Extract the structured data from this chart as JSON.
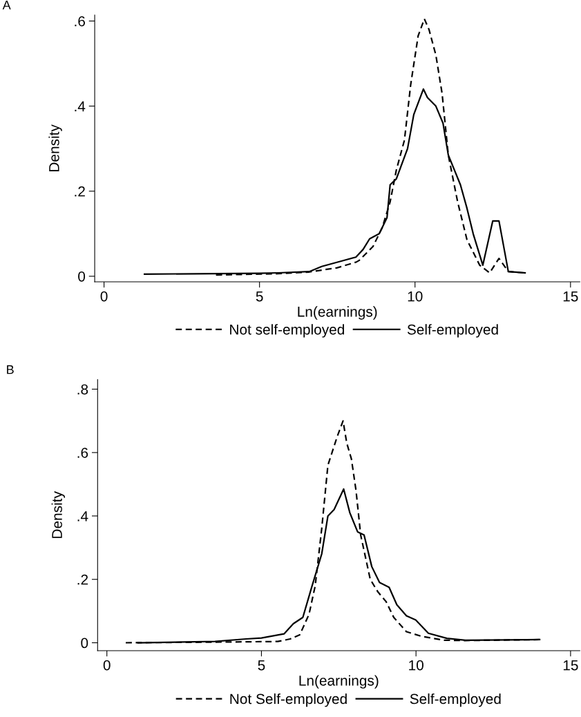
{
  "chart_data": [
    {
      "type": "line",
      "title": "A",
      "xlabel": "Ln(earnings)",
      "ylabel": "Density",
      "xlim": [
        -0.3,
        15.3
      ],
      "ylim": [
        -0.013,
        0.614
      ],
      "xticks": [
        0,
        5,
        10,
        15
      ],
      "yticks": [
        {
          "value": 0,
          "label": "0"
        },
        {
          "value": 0.2,
          "label": ".2"
        },
        {
          "value": 0.4,
          "label": ".4"
        },
        {
          "value": 0.6,
          "label": ".6"
        }
      ],
      "grid": false,
      "legend": "bottom",
      "series": [
        {
          "name": "Not self-employed",
          "color": "#000000",
          "line_style": "dashed",
          "x": [
            3.6,
            5.6,
            6.6,
            7.5,
            8.1,
            8.2,
            8.65,
            8.95,
            9.2,
            9.4,
            9.66,
            9.86,
            10.1,
            10.3,
            10.45,
            10.67,
            10.87,
            11.07,
            11.37,
            11.67,
            12.08,
            12.4,
            12.7,
            13.0,
            13.5
          ],
          "values": [
            0.003,
            0.006,
            0.01,
            0.02,
            0.033,
            0.037,
            0.07,
            0.115,
            0.175,
            0.25,
            0.32,
            0.45,
            0.565,
            0.605,
            0.58,
            0.52,
            0.43,
            0.285,
            0.175,
            0.086,
            0.026,
            0.008,
            0.042,
            0.011,
            0.008
          ]
        },
        {
          "name": "Self-employed",
          "color": "#000000",
          "line_style": "solid",
          "x": [
            1.3,
            5.0,
            5.6,
            6.6,
            7.0,
            7.65,
            8.1,
            8.33,
            8.54,
            8.85,
            9.1,
            9.2,
            9.4,
            9.76,
            9.96,
            10.27,
            10.4,
            10.67,
            10.9,
            11.07,
            11.46,
            11.67,
            11.87,
            12.18,
            12.5,
            12.7,
            13.0,
            13.54
          ],
          "values": [
            0.005,
            0.007,
            0.008,
            0.011,
            0.023,
            0.036,
            0.045,
            0.063,
            0.088,
            0.1,
            0.138,
            0.215,
            0.229,
            0.3,
            0.38,
            0.44,
            0.42,
            0.4,
            0.36,
            0.285,
            0.215,
            0.16,
            0.1,
            0.026,
            0.13,
            0.13,
            0.011,
            0.008
          ]
        }
      ]
    },
    {
      "type": "line",
      "title": "B",
      "xlabel": "Ln(earnings)",
      "ylabel": "Density",
      "xlim": [
        -0.3,
        15.3
      ],
      "ylim": [
        -0.025,
        0.83
      ],
      "xticks": [
        0,
        5,
        10,
        15
      ],
      "yticks": [
        {
          "value": 0,
          "label": "0"
        },
        {
          "value": 0.2,
          "label": ".2"
        },
        {
          "value": 0.4,
          "label": ".4"
        },
        {
          "value": 0.6,
          "label": ".6"
        },
        {
          "value": 0.8,
          "label": ".8"
        }
      ],
      "grid": false,
      "legend": "bottom",
      "series": [
        {
          "name": "Not Self-employed",
          "color": "#000000",
          "line_style": "dashed",
          "x": [
            0.61,
            3.5,
            5.53,
            5.93,
            6.24,
            6.54,
            6.74,
            6.95,
            7.15,
            7.45,
            7.64,
            7.76,
            7.91,
            8.06,
            8.21,
            8.52,
            8.77,
            9.03,
            9.28,
            9.69,
            10.19,
            10.9,
            11.6,
            14.0
          ],
          "values": [
            0.0,
            0.002,
            0.004,
            0.012,
            0.025,
            0.09,
            0.18,
            0.36,
            0.56,
            0.65,
            0.7,
            0.63,
            0.58,
            0.48,
            0.34,
            0.2,
            0.16,
            0.13,
            0.08,
            0.035,
            0.02,
            0.008,
            0.007,
            0.01
          ]
        },
        {
          "name": "Self-employed",
          "color": "#000000",
          "line_style": "solid",
          "x": [
            1.01,
            3.5,
            4.5,
            5.0,
            5.73,
            6.03,
            6.34,
            6.64,
            6.95,
            7.15,
            7.35,
            7.66,
            7.86,
            8.11,
            8.32,
            8.57,
            8.82,
            9.13,
            9.38,
            9.69,
            9.99,
            10.4,
            11.0,
            11.6,
            14.0
          ],
          "values": [
            0.0,
            0.004,
            0.012,
            0.015,
            0.028,
            0.06,
            0.08,
            0.18,
            0.28,
            0.4,
            0.42,
            0.485,
            0.41,
            0.35,
            0.34,
            0.24,
            0.19,
            0.175,
            0.12,
            0.085,
            0.072,
            0.03,
            0.014,
            0.008,
            0.01
          ]
        }
      ]
    }
  ]
}
